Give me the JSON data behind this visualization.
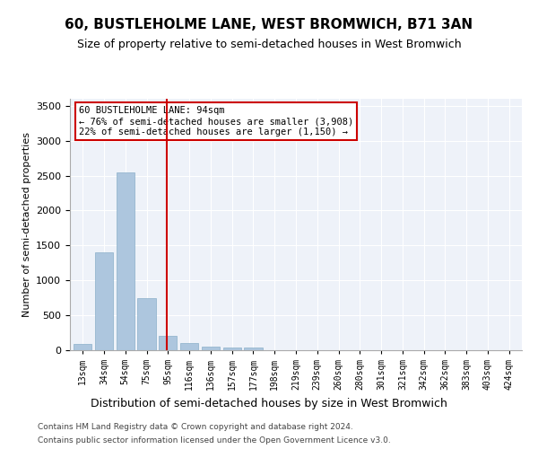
{
  "title": "60, BUSTLEHOLME LANE, WEST BROMWICH, B71 3AN",
  "subtitle": "Size of property relative to semi-detached houses in West Bromwich",
  "xlabel": "Distribution of semi-detached houses by size in West Bromwich",
  "ylabel": "Number of semi-detached properties",
  "categories": [
    "13sqm",
    "34sqm",
    "54sqm",
    "75sqm",
    "95sqm",
    "116sqm",
    "136sqm",
    "157sqm",
    "177sqm",
    "198sqm",
    "219sqm",
    "239sqm",
    "260sqm",
    "280sqm",
    "301sqm",
    "321sqm",
    "342sqm",
    "362sqm",
    "383sqm",
    "403sqm",
    "424sqm"
  ],
  "values": [
    90,
    1400,
    2550,
    750,
    200,
    100,
    55,
    35,
    35,
    0,
    0,
    0,
    0,
    0,
    0,
    0,
    0,
    0,
    0,
    0,
    0
  ],
  "bar_color": "#adc6de",
  "bar_edge_color": "#8aafc9",
  "vline_color": "#cc0000",
  "vline_index": 3.93,
  "annotation_title": "60 BUSTLEHOLME LANE: 94sqm",
  "annotation_line1": "← 76% of semi-detached houses are smaller (3,908)",
  "annotation_line2": "22% of semi-detached houses are larger (1,150) →",
  "annotation_box_color": "#ffffff",
  "annotation_box_edge_color": "#cc0000",
  "ylim": [
    0,
    3600
  ],
  "yticks": [
    0,
    500,
    1000,
    1500,
    2000,
    2500,
    3000,
    3500
  ],
  "background_color": "#eef2f9",
  "footer1": "Contains HM Land Registry data © Crown copyright and database right 2024.",
  "footer2": "Contains public sector information licensed under the Open Government Licence v3.0."
}
